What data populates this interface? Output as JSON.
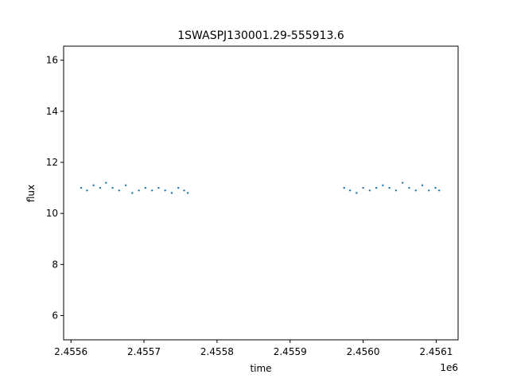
{
  "chart_data": {
    "type": "scatter",
    "title": "1SWASPJ130001.29-555913.6",
    "xlabel": "time",
    "ylabel": "flux",
    "x_offset_label": "1e6",
    "xlim": [
      2455590,
      2456130
    ],
    "ylim": [
      5.05,
      16.55
    ],
    "x_ticks": [
      2455600,
      2455700,
      2455800,
      2455900,
      2456000,
      2456100
    ],
    "x_tick_labels": [
      "2.4556",
      "2.4557",
      "2.4558",
      "2.4559",
      "2.4560",
      "2.4561"
    ],
    "y_ticks": [
      6,
      8,
      10,
      12,
      14,
      16
    ],
    "y_tick_labels": [
      "6",
      "8",
      "10",
      "12",
      "14",
      "16"
    ],
    "grid": false,
    "point_color": "#1f77b4",
    "series": [
      {
        "x": [
          2455614,
          2455622,
          2455631,
          2455640,
          2455648,
          2455657,
          2455666,
          2455675,
          2455684,
          2455693,
          2455702,
          2455711,
          2455720,
          2455729,
          2455738,
          2455747,
          2455755,
          2455760,
          2455974,
          2455982,
          2455991,
          2456000,
          2456009,
          2456018,
          2456027,
          2456036,
          2456045,
          2456054,
          2456063,
          2456072,
          2456081,
          2456090,
          2456099,
          2456104
        ],
        "y": [
          11.0,
          10.9,
          11.1,
          11.0,
          11.2,
          11.0,
          10.9,
          11.1,
          10.8,
          10.9,
          11.0,
          10.9,
          11.0,
          10.9,
          10.8,
          11.0,
          10.9,
          10.8,
          11.0,
          10.9,
          10.8,
          11.0,
          10.9,
          11.0,
          11.1,
          11.0,
          10.9,
          11.2,
          11.0,
          10.9,
          11.1,
          10.9,
          11.0,
          10.9
        ]
      }
    ]
  }
}
